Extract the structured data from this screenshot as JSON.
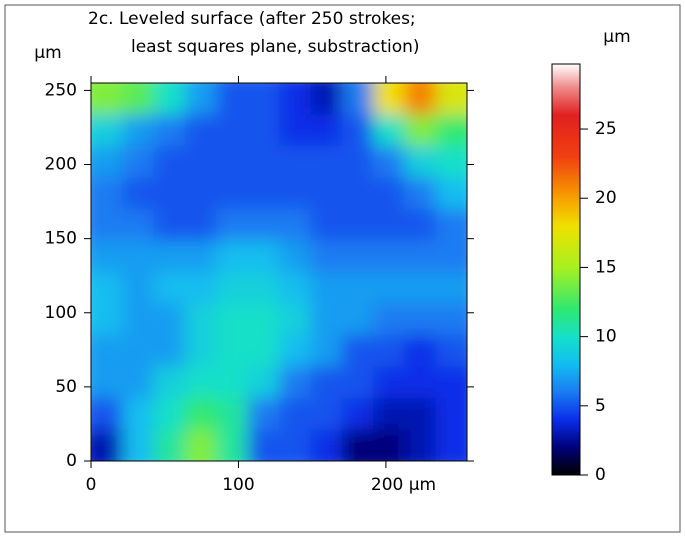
{
  "chart_data": {
    "type": "heatmap",
    "title": [
      "2c. Leveled surface (after 250 strokes;",
      "least squares plane, substraction)"
    ],
    "y_unit": "µm",
    "colorbar_unit": "µm",
    "xlim": [
      0,
      255
    ],
    "ylim": [
      0,
      255
    ],
    "xticks": [
      0,
      100,
      {
        "value": 200,
        "label": "200 µm"
      }
    ],
    "yticks": [
      0,
      50,
      100,
      150,
      200,
      250
    ],
    "clim": [
      0,
      29.7
    ],
    "cticks": [
      0,
      5,
      10,
      15,
      20,
      25
    ],
    "colormap": [
      {
        "value": 0,
        "color": "#000000"
      },
      {
        "value": 2,
        "color": "#00007a"
      },
      {
        "value": 4,
        "color": "#0a2ee8"
      },
      {
        "value": 6,
        "color": "#1a7cf2"
      },
      {
        "value": 8,
        "color": "#12bdf0"
      },
      {
        "value": 10,
        "color": "#16e0c8"
      },
      {
        "value": 12,
        "color": "#30e870"
      },
      {
        "value": 15,
        "color": "#a8f020"
      },
      {
        "value": 18,
        "color": "#f0e000"
      },
      {
        "value": 20,
        "color": "#f8a000"
      },
      {
        "value": 23,
        "color": "#f04010"
      },
      {
        "value": 26,
        "color": "#e02020"
      },
      {
        "value": 28,
        "color": "#f08a8a"
      },
      {
        "value": 29.7,
        "color": "#ffffff"
      }
    ],
    "z": [
      [
        14,
        13,
        10,
        7,
        5,
        5,
        4,
        3,
        6,
        18,
        21,
        17
      ],
      [
        9,
        7,
        6,
        5,
        5,
        5,
        4,
        4,
        5,
        10,
        14,
        12
      ],
      [
        7,
        6,
        5,
        5,
        5,
        5,
        5,
        5,
        5,
        6,
        9,
        10
      ],
      [
        6,
        5,
        5,
        5,
        5,
        5,
        5,
        5,
        5,
        5,
        6,
        8
      ],
      [
        6,
        6,
        5,
        5,
        6,
        6,
        6,
        5,
        5,
        5,
        5,
        6
      ],
      [
        7,
        7,
        7,
        7,
        8,
        8,
        7,
        6,
        6,
        6,
        6,
        6
      ],
      [
        8,
        7,
        8,
        8,
        9,
        9,
        8,
        7,
        7,
        7,
        7,
        7
      ],
      [
        8,
        7,
        7,
        9,
        10,
        10,
        9,
        7,
        7,
        6,
        6,
        6
      ],
      [
        7,
        7,
        7,
        9,
        10,
        10,
        8,
        7,
        5,
        5,
        4,
        5
      ],
      [
        7,
        7,
        9,
        10,
        10,
        9,
        6,
        5,
        5,
        4,
        4,
        4
      ],
      [
        5,
        8,
        10,
        12,
        11,
        6,
        5,
        5,
        4,
        3,
        3,
        4
      ],
      [
        3,
        8,
        11,
        14,
        11,
        5,
        5,
        4,
        2,
        2,
        3,
        4
      ]
    ]
  }
}
